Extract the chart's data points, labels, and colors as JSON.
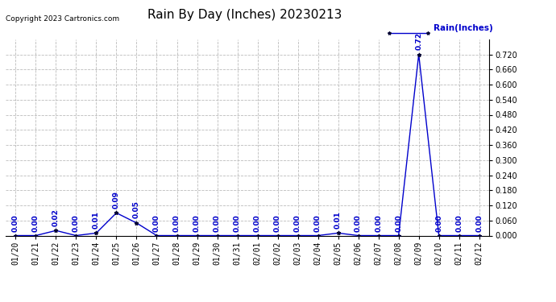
{
  "title": "Rain By Day (Inches) 20230213",
  "copyright_text": "Copyright 2023 Cartronics.com",
  "legend_label": "Rain(Inches)",
  "dates": [
    "01/20",
    "01/21",
    "01/22",
    "01/23",
    "01/24",
    "01/25",
    "01/26",
    "01/27",
    "01/28",
    "01/29",
    "01/30",
    "01/31",
    "02/01",
    "02/02",
    "02/03",
    "02/04",
    "02/05",
    "02/06",
    "02/07",
    "02/08",
    "02/09",
    "02/10",
    "02/11",
    "02/12"
  ],
  "values": [
    0.0,
    0.0,
    0.02,
    0.0,
    0.01,
    0.09,
    0.05,
    0.0,
    0.0,
    0.0,
    0.0,
    0.0,
    0.0,
    0.0,
    0.0,
    0.0,
    0.01,
    0.0,
    0.0,
    0.0,
    0.72,
    0.0,
    0.0,
    0.0
  ],
  "line_color": "#0000cc",
  "marker_color": "#000033",
  "annotation_color": "#0000cc",
  "bg_color": "#ffffff",
  "grid_color": "#bbbbbb",
  "ylim": [
    0.0,
    0.78
  ],
  "yticks": [
    0.0,
    0.06,
    0.12,
    0.18,
    0.24,
    0.3,
    0.36,
    0.42,
    0.48,
    0.54,
    0.6,
    0.66,
    0.72
  ],
  "title_fontsize": 11,
  "annotation_fontsize": 6.5,
  "tick_fontsize": 7,
  "copyright_fontsize": 6.5,
  "legend_fontsize": 7.5
}
